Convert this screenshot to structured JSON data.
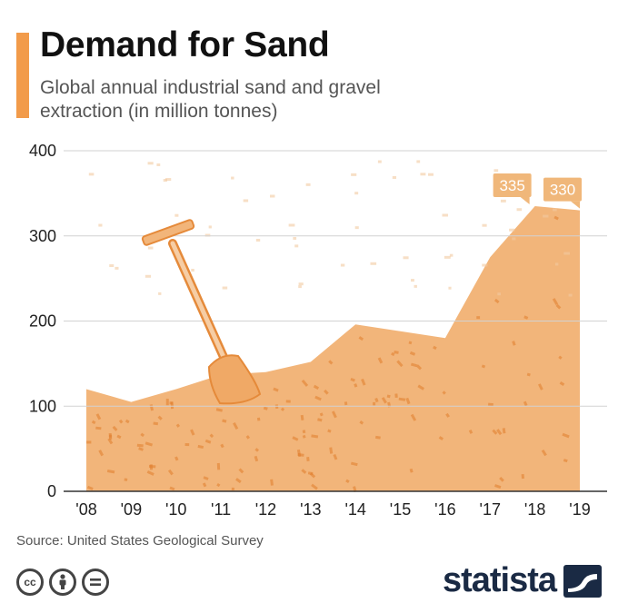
{
  "title": "Demand for Sand",
  "subtitle": "Global annual industrial sand and gravel extraction (in million tonnes)",
  "source": "Source: United States Geological Survey",
  "brand": "statista",
  "license_icons": [
    "cc-icon",
    "attribution-icon",
    "no-derivatives-icon"
  ],
  "colors": {
    "accent": "#f29b4a",
    "area": "#f2b57a",
    "label_bg": "#f0b77a",
    "brand": "#1a2a44"
  },
  "chart_data": {
    "type": "area",
    "title": "Demand for Sand",
    "xlabel": "",
    "ylabel": "",
    "ylim": [
      0,
      400
    ],
    "yticks": [
      "0",
      "100",
      "200",
      "300",
      "400"
    ],
    "categories": [
      "'08",
      "'09",
      "'10",
      "'11",
      "'12",
      "'13",
      "'14",
      "'15",
      "'16",
      "'17",
      "'18",
      "'19"
    ],
    "values": [
      120,
      105,
      120,
      137,
      140,
      152,
      196,
      188,
      180,
      275,
      335,
      330
    ],
    "annotations": [
      {
        "index": 10,
        "text": "335"
      },
      {
        "index": 11,
        "text": "330"
      }
    ]
  }
}
